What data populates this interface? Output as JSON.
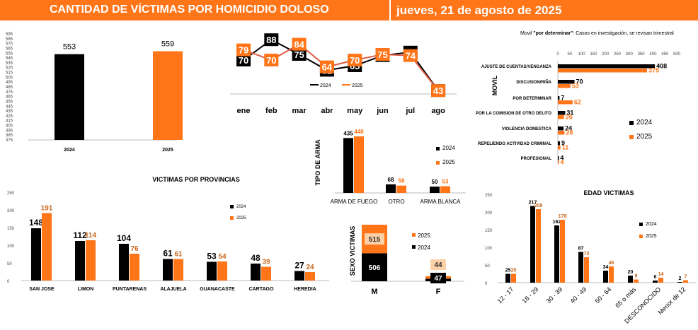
{
  "header": {
    "title": "CANTIDAD DE VÍCTIMAS POR HOMICIDIO DOLOSO",
    "date": "jueves, 21 de agosto de 2025"
  },
  "colors": {
    "y2024": "#000000",
    "y2025": "#ff7518",
    "header": "#ff7518"
  },
  "chart_data": [
    {
      "id": "total",
      "type": "bar",
      "categories": [
        "2024",
        "2025"
      ],
      "values": [
        553,
        559
      ],
      "ylim": [
        375,
        595
      ],
      "yticks": [
        "595",
        "585",
        "575",
        "565",
        "555",
        "545",
        "535",
        "525",
        "515",
        "505",
        "495",
        "485",
        "475",
        "465",
        "455",
        "445",
        "435",
        "425",
        "415",
        "405",
        "395",
        "385",
        "375"
      ]
    },
    {
      "id": "monthly",
      "type": "line",
      "categories": [
        "ene",
        "feb",
        "mar",
        "abr",
        "may",
        "jun",
        "jul",
        "ago"
      ],
      "series": [
        {
          "name": "2024",
          "values": [
            70,
            88,
            75,
            61,
            65,
            74,
            77,
            43
          ]
        },
        {
          "name": "2025",
          "values": [
            79,
            70,
            84,
            64,
            70,
            75,
            74,
            43
          ]
        }
      ]
    },
    {
      "id": "movil",
      "type": "bar",
      "orientation": "horizontal",
      "title": "Movil \"por determinar\": Casos en investigación, se revisan trimestral",
      "title_prefix": "Movil ",
      "title_bold": "\"por determinar\"",
      "title_suffix": ": Casos en investigación, se revisan trimestral",
      "ylabel": "MOVIL",
      "xlim": [
        0,
        500
      ],
      "xticks": [
        "0",
        "50",
        "100",
        "150",
        "200",
        "250",
        "300",
        "350",
        "400",
        "450",
        "500"
      ],
      "categories": [
        "AJUSTE DE CUENTAS/VENGANZA",
        "DISCUSION/RIÑA",
        "POR DETERMINAR",
        "POR LA COMISION DE OTRO DELITO",
        "VIOLENCIA DOMESTICA",
        "REPELIENDO ACTIVIDAD CRIMINAL",
        "PROFESIONAL"
      ],
      "series": [
        {
          "name": "2024",
          "values": [
            408,
            70,
            7,
            31,
            24,
            9,
            4
          ]
        },
        {
          "name": "2025",
          "values": [
            375,
            53,
            62,
            26,
            28,
            11,
            4
          ]
        }
      ]
    },
    {
      "id": "arma",
      "type": "bar",
      "ylabel": "TIPO DE ARMA",
      "categories": [
        "ARMA DE FUEGO",
        "OTRO",
        "ARMA BLANCA"
      ],
      "series": [
        {
          "name": "2024",
          "values": [
            435,
            68,
            50
          ]
        },
        {
          "name": "2025",
          "values": [
            448,
            58,
            53
          ]
        }
      ]
    },
    {
      "id": "sexo",
      "type": "bar",
      "stacked": true,
      "ylabel": "SEXO VICTIMAS",
      "categories": [
        "M",
        "F"
      ],
      "series": [
        {
          "name": "2024",
          "values": [
            506,
            47
          ]
        },
        {
          "name": "2025",
          "values": [
            515,
            44
          ]
        }
      ]
    },
    {
      "id": "provincias",
      "type": "bar",
      "title": "VICTIMAS POR PROVINCIAS",
      "ylim": [
        0,
        250
      ],
      "yticks": [
        "250",
        "200",
        "150",
        "100",
        "50",
        "0"
      ],
      "categories": [
        "SAN JOSE",
        "LIMON",
        "PUNTARENAS",
        "ALAJUELA",
        "GUANACASTE",
        "CARTAGO",
        "HEREDIA"
      ],
      "series": [
        {
          "name": "2024",
          "values": [
            148,
            112,
            104,
            61,
            53,
            48,
            27
          ]
        },
        {
          "name": "2025",
          "values": [
            191,
            114,
            76,
            61,
            54,
            39,
            24
          ]
        }
      ]
    },
    {
      "id": "edad",
      "type": "bar",
      "title": "EDAD VICTIMAS",
      "ylim": [
        0,
        250
      ],
      "yticks": [
        "250",
        "200",
        "150",
        "100",
        "50",
        "0"
      ],
      "categories": [
        "12 - 17",
        "18 - 29",
        "30 - 39",
        "40 - 49",
        "50 - 64",
        "65 o más",
        "DESCONOCIDO",
        "Menor de 12"
      ],
      "series": [
        {
          "name": "2024",
          "values": [
            25,
            217,
            162,
            87,
            34,
            20,
            6,
            2
          ]
        },
        {
          "name": "2025",
          "values": [
            25,
            208,
            178,
            72,
            46,
            9,
            14,
            7
          ]
        }
      ]
    }
  ]
}
